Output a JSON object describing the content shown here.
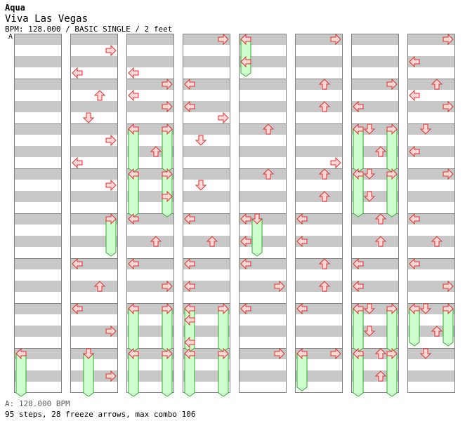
{
  "header": {
    "artist": "Aqua",
    "title": "Viva Las Vegas",
    "info": "BPM: 128.000 / BASIC SINGLE / 2 feet",
    "bpm_marker": "A"
  },
  "footer": {
    "bpm_legend": "A: 128.000 BPM",
    "stats": "95 steps, 28 freeze arrows, max combo 106"
  },
  "colors": {
    "stripe": "#c8c8c8",
    "border": "#808080",
    "arrow_fill": "#ffd8d8",
    "arrow_stroke": "#e03030",
    "freeze_fill": "#ccffcc",
    "freeze_stroke": "#33aa33",
    "bpm_line": "#4a90e2"
  },
  "chart_data": {
    "type": "step-chart",
    "lanes": [
      "left",
      "down",
      "up",
      "right"
    ],
    "measures_per_column": 8,
    "columns": 8,
    "unit": "beat (4 per measure)",
    "arrows": [
      [
        1,
        3,
        0
      ],
      [
        1,
        1,
        3
      ],
      [
        1,
        5,
        2
      ],
      [
        1,
        7,
        1
      ],
      [
        1,
        9,
        3
      ],
      [
        1,
        11,
        0
      ],
      [
        1,
        13,
        3
      ],
      [
        1,
        20,
        0
      ],
      [
        1,
        22,
        2
      ],
      [
        1,
        24,
        0
      ],
      [
        1,
        26,
        3
      ],
      [
        1,
        28,
        1
      ],
      [
        1,
        30,
        3
      ],
      [
        2,
        3,
        0
      ],
      [
        2,
        5,
        0
      ],
      [
        2,
        4,
        3
      ],
      [
        2,
        6,
        3
      ],
      [
        2,
        8,
        0
      ],
      [
        2,
        10,
        2
      ],
      [
        2,
        14,
        3
      ],
      [
        2,
        16,
        0
      ],
      [
        2,
        18,
        2
      ],
      [
        2,
        20,
        0
      ],
      [
        2,
        22,
        3
      ],
      [
        3,
        0,
        3
      ],
      [
        3,
        4,
        0
      ],
      [
        3,
        6,
        0
      ],
      [
        3,
        7,
        3
      ],
      [
        3,
        9,
        1
      ],
      [
        3,
        13,
        1
      ],
      [
        3,
        16,
        0
      ],
      [
        3,
        18,
        2
      ],
      [
        3,
        20,
        0
      ],
      [
        3,
        22,
        0
      ],
      [
        3,
        25,
        0
      ],
      [
        3,
        27,
        0
      ],
      [
        4,
        2,
        0
      ],
      [
        4,
        8,
        2
      ],
      [
        4,
        12,
        2
      ],
      [
        4,
        16,
        0
      ],
      [
        4,
        18,
        0
      ],
      [
        4,
        20,
        0
      ],
      [
        4,
        22,
        3
      ],
      [
        4,
        24,
        0
      ],
      [
        4,
        28,
        3
      ],
      [
        5,
        0,
        3
      ],
      [
        5,
        4,
        2
      ],
      [
        5,
        6,
        2
      ],
      [
        5,
        11,
        3
      ],
      [
        5,
        12,
        2
      ],
      [
        5,
        14,
        2
      ],
      [
        5,
        16,
        0
      ],
      [
        5,
        18,
        0
      ],
      [
        5,
        20,
        2
      ],
      [
        5,
        22,
        2
      ],
      [
        5,
        24,
        0
      ],
      [
        5,
        28,
        3
      ],
      [
        6,
        4,
        3
      ],
      [
        6,
        6,
        0
      ],
      [
        6,
        8,
        1
      ],
      [
        6,
        10,
        2
      ],
      [
        6,
        12,
        1
      ],
      [
        6,
        14,
        1
      ],
      [
        6,
        16,
        2
      ],
      [
        6,
        18,
        2
      ],
      [
        6,
        20,
        0
      ],
      [
        6,
        22,
        0
      ],
      [
        6,
        24,
        1
      ],
      [
        6,
        26,
        1
      ],
      [
        6,
        28,
        2
      ],
      [
        6,
        30,
        2
      ],
      [
        7,
        0,
        3
      ],
      [
        7,
        2,
        0
      ],
      [
        7,
        4,
        2
      ],
      [
        7,
        5,
        0
      ],
      [
        7,
        6,
        3
      ],
      [
        7,
        8,
        1
      ],
      [
        7,
        10,
        0
      ],
      [
        7,
        12,
        3
      ],
      [
        7,
        16,
        0
      ],
      [
        7,
        18,
        2
      ],
      [
        7,
        20,
        0
      ],
      [
        7,
        22,
        3
      ],
      [
        7,
        24,
        1
      ],
      [
        7,
        26,
        2
      ],
      [
        7,
        28,
        1
      ]
    ],
    "freezes": [
      [
        0,
        28,
        0,
        31.5
      ],
      [
        1,
        28,
        1,
        31.5
      ],
      [
        1,
        16,
        3,
        19
      ],
      [
        2,
        8,
        0,
        11.5
      ],
      [
        2,
        8,
        3,
        11.5
      ],
      [
        2,
        12,
        0,
        15.5
      ],
      [
        2,
        12,
        3,
        15.5
      ],
      [
        2,
        24,
        0,
        27.5
      ],
      [
        2,
        24,
        3,
        27.5
      ],
      [
        2,
        28,
        0,
        31.5
      ],
      [
        2,
        28,
        3,
        31.5
      ],
      [
        3,
        24,
        0,
        27.5
      ],
      [
        3,
        24,
        3,
        27.5
      ],
      [
        3,
        28,
        0,
        31.5
      ],
      [
        3,
        28,
        3,
        31.5
      ],
      [
        4,
        0,
        0,
        3
      ],
      [
        4,
        16,
        1,
        19
      ],
      [
        5,
        28,
        0,
        31
      ],
      [
        6,
        8,
        0,
        11.5
      ],
      [
        6,
        8,
        3,
        11.5
      ],
      [
        6,
        12,
        0,
        15.5
      ],
      [
        6,
        12,
        3,
        15.5
      ],
      [
        6,
        24,
        0,
        27.5
      ],
      [
        6,
        24,
        3,
        27.5
      ],
      [
        6,
        28,
        0,
        31.5
      ],
      [
        6,
        28,
        3,
        31.5
      ],
      [
        7,
        24,
        0,
        27
      ],
      [
        7,
        24,
        3,
        27
      ]
    ]
  }
}
